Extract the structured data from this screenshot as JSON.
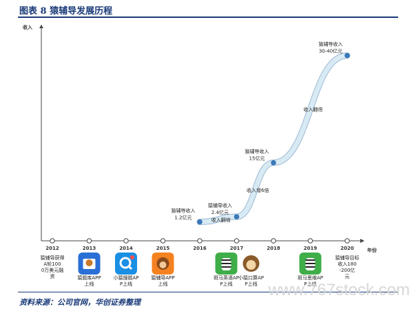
{
  "title": "图表 8 猿辅导发展历程",
  "source": "资料来源：公司官网，华创证券整理",
  "watermark": "www.767stock.com",
  "colors": {
    "title": "#1a3a78",
    "curve_fill": "#d8eaf3",
    "curve_stroke": "#4a7fb2",
    "point": "#3a78b8",
    "axis": "#444444",
    "icon_zebra": "#3fae49",
    "icon_blue": "#1a8fe3",
    "icon_orange": "#f58220",
    "icon_navy": "#2a6fd6"
  },
  "chart_data": {
    "type": "line",
    "title": "",
    "xlabel": "年份",
    "ylabel": "收入",
    "categories": [
      "2012",
      "2013",
      "2014",
      "2015",
      "2016",
      "2017",
      "2018",
      "2019",
      "2020"
    ],
    "grid": false,
    "legend": "none",
    "series": [
      {
        "values": [
          null,
          null,
          null,
          null,
          1.2,
          2.4,
          15,
          null,
          40
        ]
      }
    ],
    "ylim": [
      0,
      43
    ],
    "data_labels": [
      {
        "x": "2016",
        "text": "猿辅导收入 1.2亿元"
      },
      {
        "x": "2017",
        "text": "猿辅导收入 2.4亿元"
      },
      {
        "x": "2018",
        "text": "猿辅导收入 15亿元"
      },
      {
        "x": "2020",
        "text": "猿辅导收入 30-40亿元"
      }
    ],
    "growth_labels": [
      "收入翻倍",
      "收入增6倍",
      "收入翻倍"
    ],
    "events": [
      {
        "year": "2012",
        "text": "猿辅导获得A轮1000万美元融资",
        "icon": ""
      },
      {
        "year": "2013",
        "text": "猿题库APP上线",
        "icon": "monkey-book-icon"
      },
      {
        "year": "2014",
        "text": "小猿搜题APP上线",
        "icon": "search-q-icon"
      },
      {
        "year": "2015",
        "text": "猿辅导APP上线",
        "icon": "monkey-face-icon"
      },
      {
        "year": "2017",
        "text": "斑马英语APP上线",
        "icon": "zebra-icon"
      },
      {
        "year": "2017",
        "text": "小猿口算APP上线",
        "icon": "monkey-cartoon-icon"
      },
      {
        "year": "2019",
        "text": "斑马思维APP上线",
        "icon": "zebra-icon"
      },
      {
        "year": "2020",
        "text": "猿辅导目标收入180-200亿元",
        "icon": ""
      }
    ]
  }
}
